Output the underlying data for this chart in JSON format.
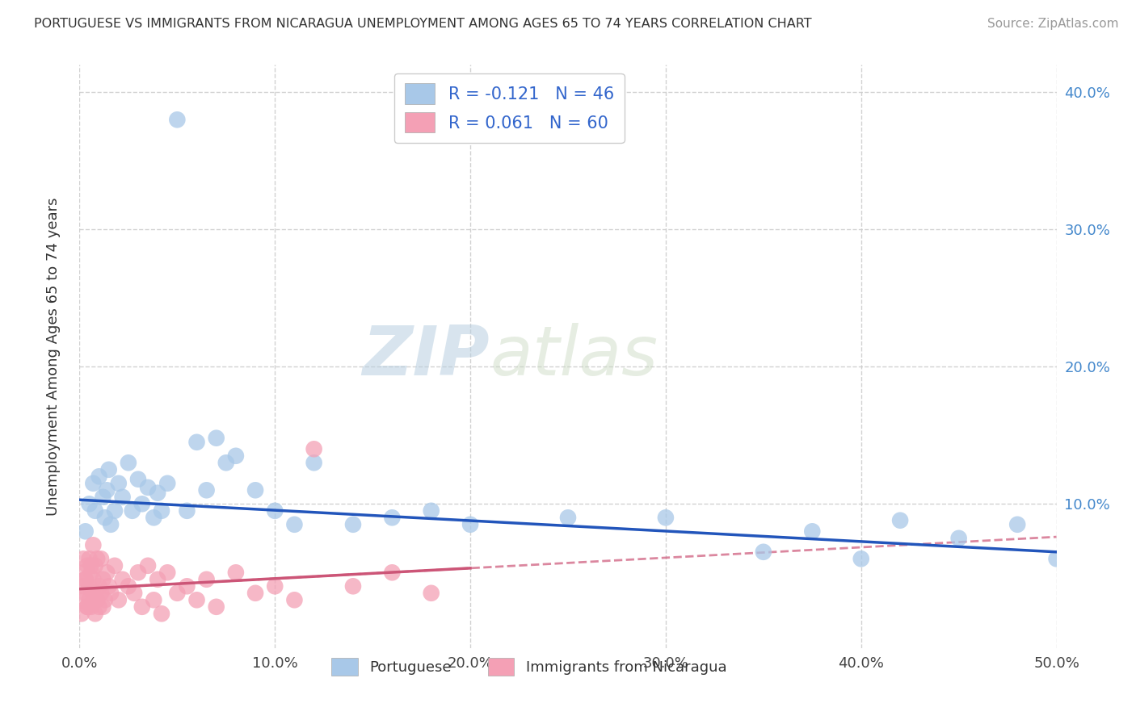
{
  "title": "PORTUGUESE VS IMMIGRANTS FROM NICARAGUA UNEMPLOYMENT AMONG AGES 65 TO 74 YEARS CORRELATION CHART",
  "source": "Source: ZipAtlas.com",
  "ylabel": "Unemployment Among Ages 65 to 74 years",
  "xlim": [
    0.0,
    0.5
  ],
  "ylim": [
    -0.005,
    0.42
  ],
  "xticks": [
    0.0,
    0.1,
    0.2,
    0.3,
    0.4,
    0.5
  ],
  "xtick_labels": [
    "0.0%",
    "10.0%",
    "20.0%",
    "30.0%",
    "40.0%",
    "50.0%"
  ],
  "yticks": [
    0.1,
    0.2,
    0.3,
    0.4
  ],
  "ytick_labels": [
    "10.0%",
    "20.0%",
    "30.0%",
    "40.0%"
  ],
  "blue_R": -0.121,
  "blue_N": 46,
  "pink_R": 0.061,
  "pink_N": 60,
  "blue_color": "#a8c8e8",
  "pink_color": "#f4a0b5",
  "blue_line_color": "#2255bb",
  "pink_line_color": "#cc5577",
  "watermark_zip": "ZIP",
  "watermark_atlas": "atlas",
  "legend_R_color": "#3366cc",
  "blue_scatter_x": [
    0.003,
    0.005,
    0.007,
    0.008,
    0.01,
    0.012,
    0.013,
    0.014,
    0.015,
    0.016,
    0.018,
    0.02,
    0.022,
    0.025,
    0.027,
    0.03,
    0.032,
    0.035,
    0.038,
    0.04,
    0.042,
    0.045,
    0.05,
    0.055,
    0.06,
    0.065,
    0.07,
    0.075,
    0.08,
    0.09,
    0.1,
    0.11,
    0.12,
    0.14,
    0.16,
    0.18,
    0.2,
    0.25,
    0.3,
    0.35,
    0.375,
    0.4,
    0.42,
    0.45,
    0.48,
    0.5
  ],
  "blue_scatter_y": [
    0.08,
    0.1,
    0.115,
    0.095,
    0.12,
    0.105,
    0.09,
    0.11,
    0.125,
    0.085,
    0.095,
    0.115,
    0.105,
    0.13,
    0.095,
    0.118,
    0.1,
    0.112,
    0.09,
    0.108,
    0.095,
    0.115,
    0.38,
    0.095,
    0.145,
    0.11,
    0.148,
    0.13,
    0.135,
    0.11,
    0.095,
    0.085,
    0.13,
    0.085,
    0.09,
    0.095,
    0.085,
    0.09,
    0.09,
    0.065,
    0.08,
    0.06,
    0.088,
    0.075,
    0.085,
    0.06
  ],
  "pink_scatter_x": [
    0.001,
    0.002,
    0.002,
    0.003,
    0.003,
    0.004,
    0.004,
    0.005,
    0.005,
    0.006,
    0.006,
    0.007,
    0.007,
    0.008,
    0.008,
    0.009,
    0.009,
    0.01,
    0.01,
    0.011,
    0.011,
    0.012,
    0.012,
    0.013,
    0.014,
    0.015,
    0.016,
    0.018,
    0.02,
    0.022,
    0.025,
    0.028,
    0.03,
    0.032,
    0.035,
    0.038,
    0.04,
    0.042,
    0.045,
    0.05,
    0.055,
    0.06,
    0.065,
    0.07,
    0.08,
    0.09,
    0.1,
    0.11,
    0.12,
    0.14,
    0.16,
    0.18,
    0.005,
    0.003,
    0.007,
    0.006,
    0.008,
    0.004,
    0.002,
    0.001
  ],
  "pink_scatter_y": [
    0.03,
    0.04,
    0.05,
    0.035,
    0.045,
    0.025,
    0.055,
    0.03,
    0.04,
    0.025,
    0.05,
    0.035,
    0.045,
    0.02,
    0.055,
    0.03,
    0.06,
    0.025,
    0.04,
    0.035,
    0.06,
    0.025,
    0.045,
    0.03,
    0.05,
    0.04,
    0.035,
    0.055,
    0.03,
    0.045,
    0.04,
    0.035,
    0.05,
    0.025,
    0.055,
    0.03,
    0.045,
    0.02,
    0.05,
    0.035,
    0.04,
    0.03,
    0.045,
    0.025,
    0.05,
    0.035,
    0.04,
    0.03,
    0.14,
    0.04,
    0.05,
    0.035,
    0.06,
    0.045,
    0.07,
    0.055,
    0.035,
    0.025,
    0.06,
    0.02
  ],
  "pink_line_start_x": 0.0,
  "pink_line_end_x": 0.5,
  "pink_line_start_y": 0.038,
  "pink_line_end_y": 0.076,
  "blue_line_start_x": 0.0,
  "blue_line_end_x": 0.5,
  "blue_line_start_y": 0.103,
  "blue_line_end_y": 0.065
}
